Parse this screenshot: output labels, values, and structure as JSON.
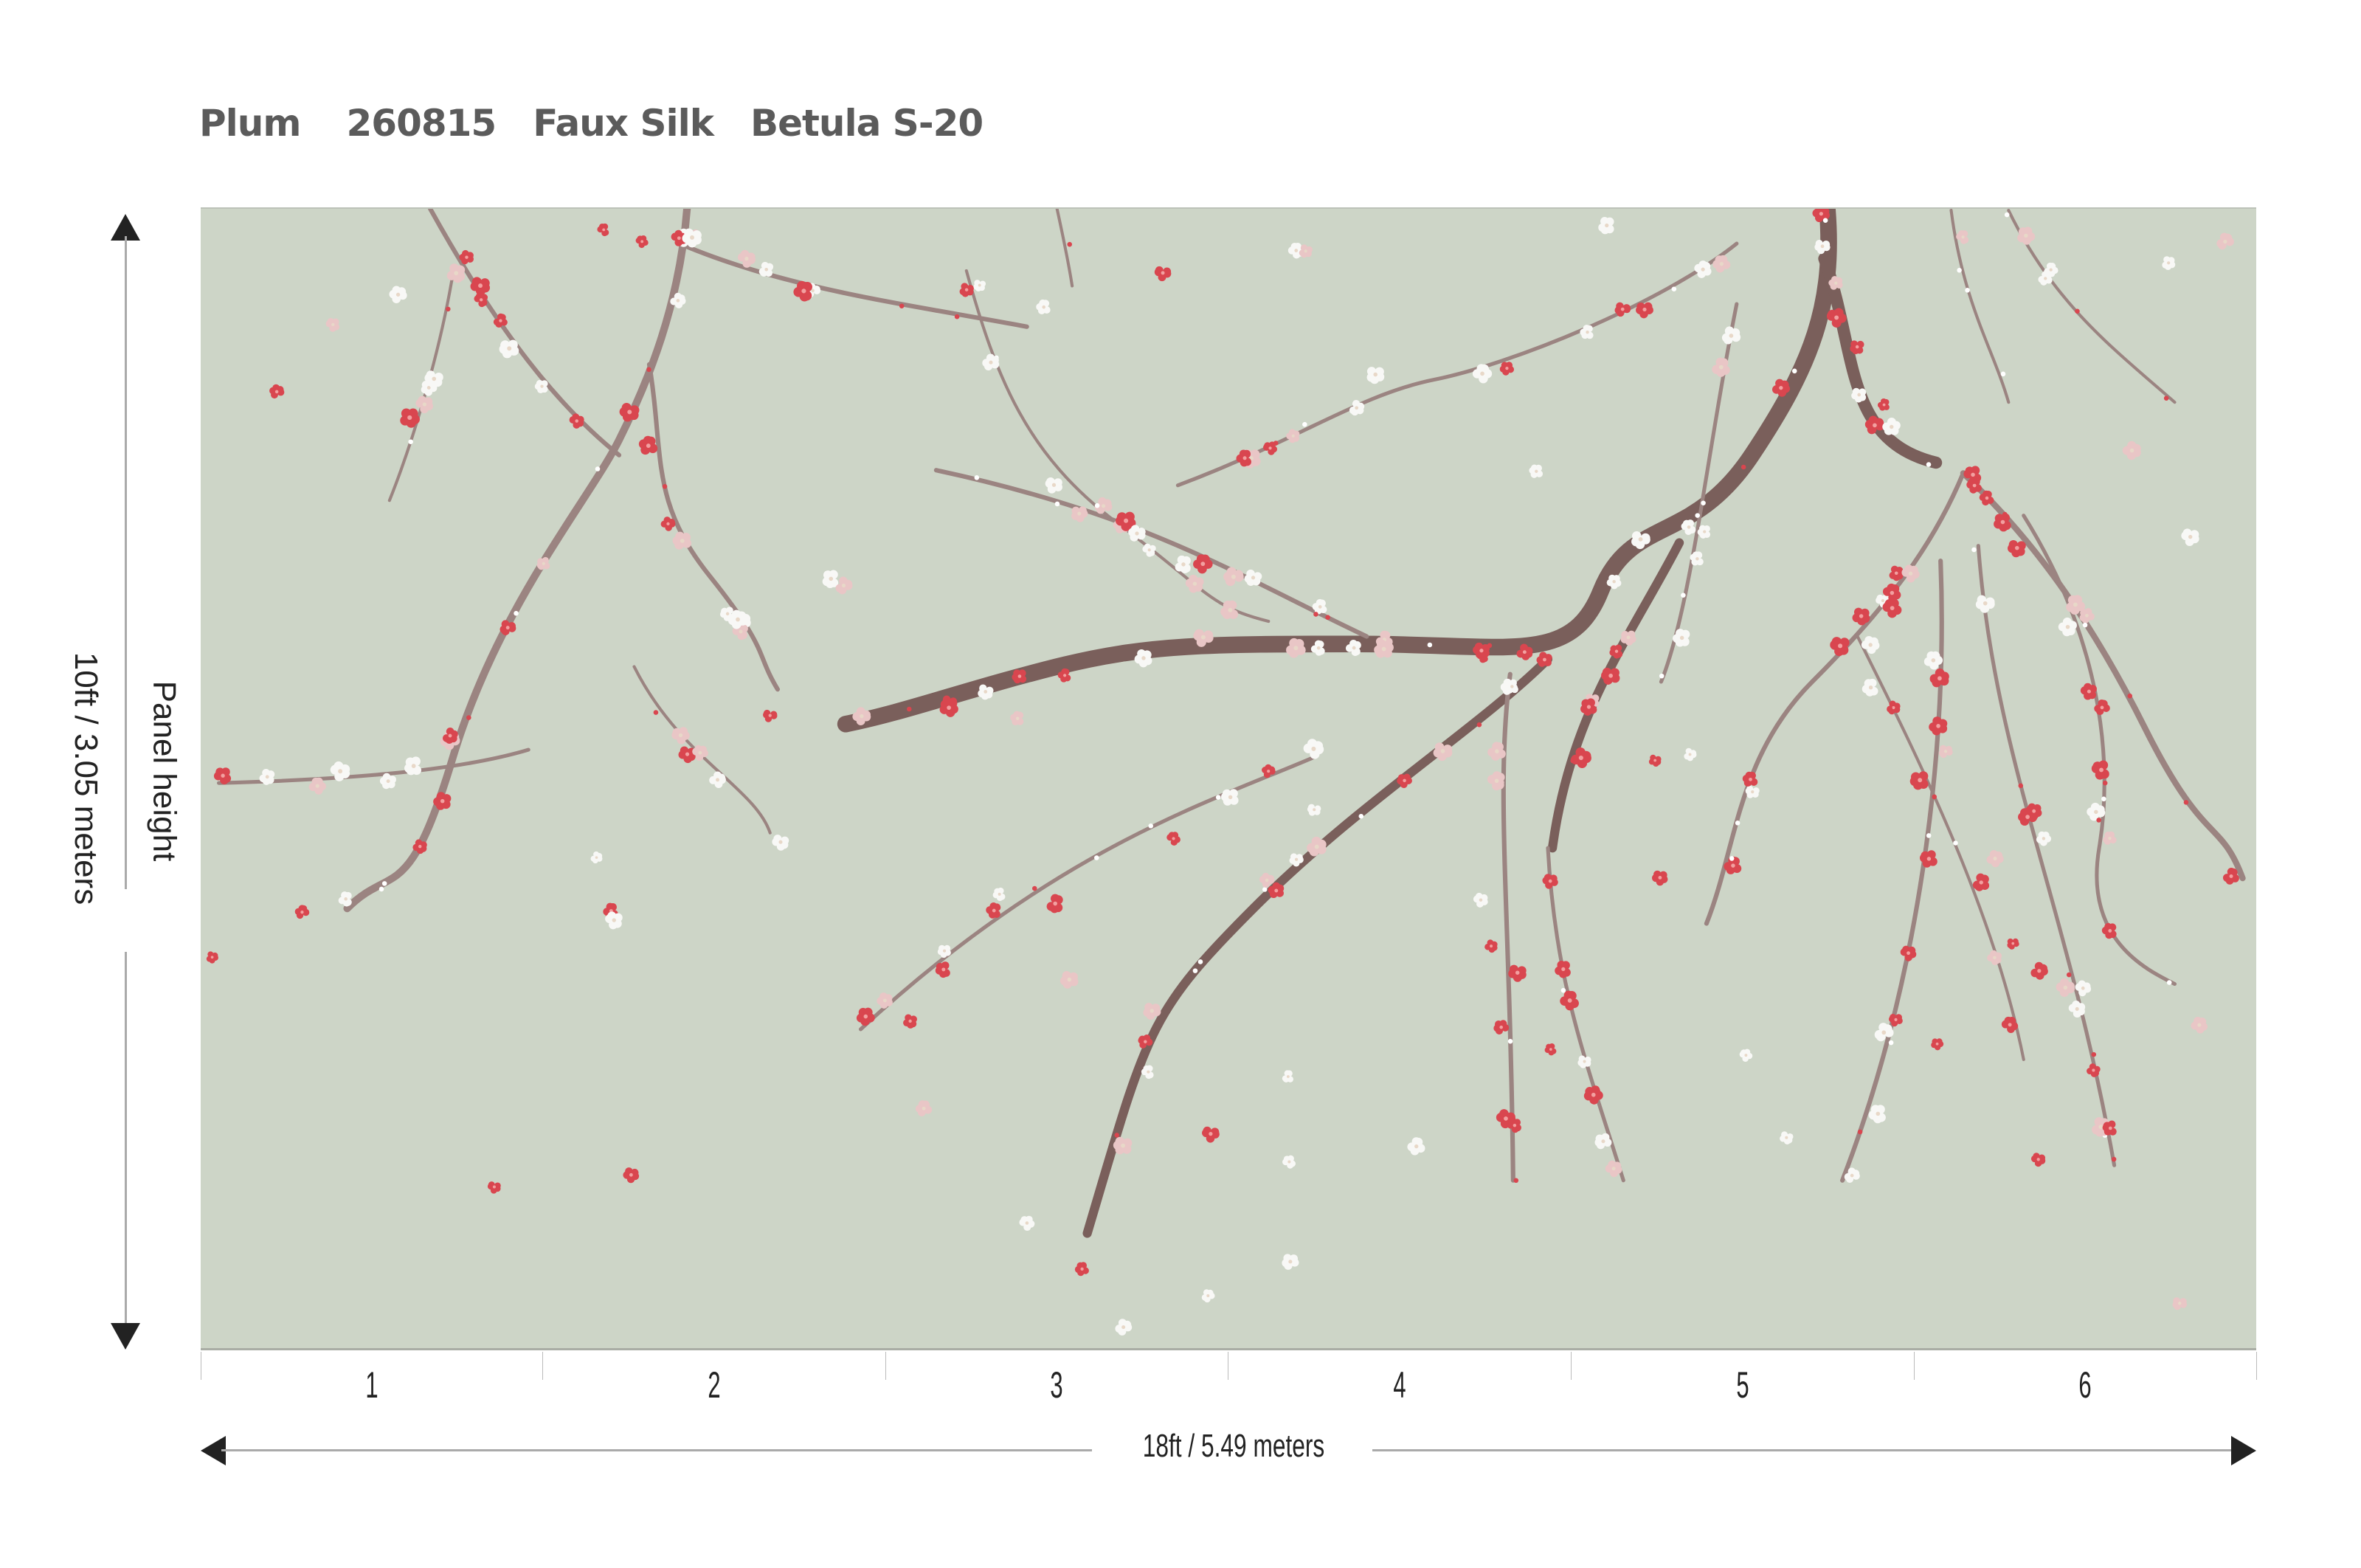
{
  "header": {
    "collection": "Plum",
    "code": "260815",
    "material": "Faux Silk",
    "colorway": "Betula S-20"
  },
  "panels": {
    "labels": [
      "1",
      "2",
      "3",
      "4",
      "5",
      "6"
    ]
  },
  "dimensions": {
    "width_label": "18ft / 5.49 meters",
    "height_title": "Panel height",
    "height_label": "10ft / 3.05 meters"
  },
  "colors": {
    "background": "#cdd5c7",
    "branch": "#7d625f",
    "blossom_red": "#d9464f",
    "blossom_pink": "#e9c6c6",
    "blossom_white": "#f8f8f6",
    "title_text": "#5b5b5b"
  }
}
